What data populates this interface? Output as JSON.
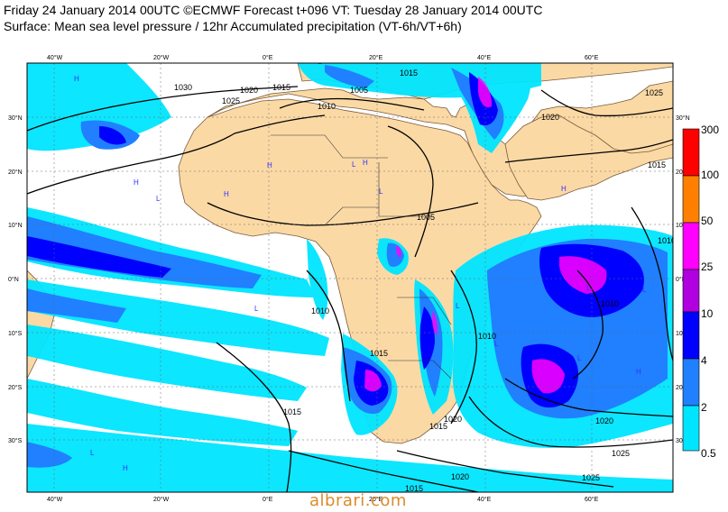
{
  "header": {
    "line1": "Friday 24 January 2014 00UTC ©ECMWF Forecast t+096 VT: Tuesday 28 January 2014 00UTC",
    "line2": "Surface: Mean sea level pressure / 12hr Accumulated precipitation (VT-6h/VT+6h)"
  },
  "axes": {
    "lon_top": [
      "40°W",
      "20°W",
      "0°E",
      "20°E",
      "40°E",
      "60°E"
    ],
    "lon_bottom": [
      "40°W",
      "20°W",
      "0°E",
      "20°E",
      "40°E",
      "60°E"
    ],
    "lat_left": [
      "30°N",
      "20°N",
      "10°N",
      "0°N",
      "10°S",
      "20°S",
      "30°S"
    ],
    "lat_right": [
      "30°N",
      "20°N",
      "10°N",
      "0°N",
      "10°S",
      "20°S",
      "30°S"
    ]
  },
  "legend": {
    "levels": [
      "300",
      "100",
      "50",
      "25",
      "10",
      "4",
      "2",
      "0.5"
    ],
    "colors": [
      "#ff0000",
      "#ff8000",
      "#ff9900",
      "#ff00ff",
      "#b000e0",
      "#0000ff",
      "#2080ff",
      "#00e5ff"
    ]
  },
  "isobar_labels": [
    "1030",
    "1025",
    "1020",
    "1015",
    "1010",
    "1005",
    "1015",
    "1010",
    "1020",
    "1015",
    "1020",
    "1025",
    "1010",
    "1005",
    "1010",
    "1010",
    "1015",
    "1020",
    "1025",
    "1015",
    "1020",
    "1015",
    "1025",
    "1015",
    "1020"
  ],
  "pressure_markers": [
    "H",
    "L"
  ],
  "watermark": "albrari.com"
}
